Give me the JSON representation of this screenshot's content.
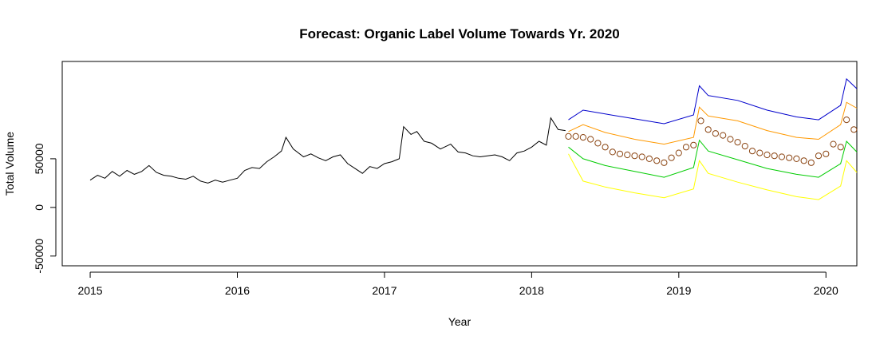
{
  "chart_data": {
    "type": "line",
    "title": "Forecast: Organic Label Volume Towards Yr. 2020",
    "xlabel": "Year",
    "ylabel": "Total Volume",
    "xlim": [
      2014.81,
      2020.21
    ],
    "ylim": [
      -60000,
      150000
    ],
    "x_ticks": [
      2015,
      2016,
      2017,
      2018,
      2019,
      2020
    ],
    "x_tick_labels": [
      "2015",
      "2016",
      "2017",
      "2018",
      "2019",
      "2020"
    ],
    "y_ticks": [
      -50000,
      0,
      50000
    ],
    "y_tick_labels": [
      "-50000",
      "0",
      "50000"
    ],
    "grid": false,
    "legend": "none",
    "series": [
      {
        "role": "observed",
        "style": "line",
        "color": "#000000",
        "points": [
          [
            2015.0,
            28000
          ],
          [
            2015.05,
            33000
          ],
          [
            2015.1,
            30000
          ],
          [
            2015.15,
            37000
          ],
          [
            2015.2,
            32000
          ],
          [
            2015.25,
            38000
          ],
          [
            2015.3,
            34000
          ],
          [
            2015.35,
            37000
          ],
          [
            2015.4,
            43000
          ],
          [
            2015.45,
            36000
          ],
          [
            2015.5,
            33000
          ],
          [
            2015.55,
            32000
          ],
          [
            2015.6,
            30000
          ],
          [
            2015.65,
            29000
          ],
          [
            2015.7,
            32000
          ],
          [
            2015.75,
            27000
          ],
          [
            2015.8,
            25000
          ],
          [
            2015.85,
            28000
          ],
          [
            2015.9,
            26000
          ],
          [
            2015.95,
            28000
          ],
          [
            2016.0,
            30000
          ],
          [
            2016.05,
            38000
          ],
          [
            2016.1,
            41000
          ],
          [
            2016.15,
            40000
          ],
          [
            2016.2,
            47000
          ],
          [
            2016.25,
            52000
          ],
          [
            2016.3,
            58000
          ],
          [
            2016.33,
            72000
          ],
          [
            2016.38,
            60000
          ],
          [
            2016.45,
            52000
          ],
          [
            2016.5,
            55000
          ],
          [
            2016.55,
            51000
          ],
          [
            2016.6,
            48000
          ],
          [
            2016.65,
            52000
          ],
          [
            2016.7,
            54000
          ],
          [
            2016.75,
            45000
          ],
          [
            2016.8,
            40000
          ],
          [
            2016.85,
            35000
          ],
          [
            2016.9,
            42000
          ],
          [
            2016.95,
            40000
          ],
          [
            2017.0,
            45000
          ],
          [
            2017.05,
            47000
          ],
          [
            2017.1,
            50000
          ],
          [
            2017.13,
            83000
          ],
          [
            2017.18,
            75000
          ],
          [
            2017.22,
            78000
          ],
          [
            2017.27,
            68000
          ],
          [
            2017.32,
            66000
          ],
          [
            2017.38,
            60000
          ],
          [
            2017.45,
            65000
          ],
          [
            2017.5,
            57000
          ],
          [
            2017.55,
            56000
          ],
          [
            2017.6,
            53000
          ],
          [
            2017.65,
            52000
          ],
          [
            2017.7,
            53000
          ],
          [
            2017.75,
            54000
          ],
          [
            2017.8,
            52000
          ],
          [
            2017.85,
            48000
          ],
          [
            2017.9,
            56000
          ],
          [
            2017.95,
            58000
          ],
          [
            2018.0,
            62000
          ],
          [
            2018.05,
            68000
          ],
          [
            2018.1,
            64000
          ],
          [
            2018.13,
            92000
          ],
          [
            2018.18,
            80000
          ],
          [
            2018.23,
            79000
          ]
        ]
      },
      {
        "role": "upper-95",
        "style": "line",
        "color": "#0000CC",
        "points": [
          [
            2018.25,
            90000
          ],
          [
            2018.35,
            100000
          ],
          [
            2018.5,
            96000
          ],
          [
            2018.7,
            91000
          ],
          [
            2018.9,
            86000
          ],
          [
            2019.1,
            95000
          ],
          [
            2019.14,
            125000
          ],
          [
            2019.2,
            115000
          ],
          [
            2019.4,
            110000
          ],
          [
            2019.6,
            100000
          ],
          [
            2019.8,
            93000
          ],
          [
            2019.95,
            90000
          ],
          [
            2020.1,
            105000
          ],
          [
            2020.14,
            132000
          ],
          [
            2020.21,
            122000
          ]
        ]
      },
      {
        "role": "upper-80",
        "style": "line",
        "color": "#FF9900",
        "points": [
          [
            2018.25,
            78000
          ],
          [
            2018.35,
            85000
          ],
          [
            2018.5,
            77000
          ],
          [
            2018.7,
            70000
          ],
          [
            2018.9,
            65000
          ],
          [
            2019.1,
            72000
          ],
          [
            2019.14,
            103000
          ],
          [
            2019.2,
            94000
          ],
          [
            2019.4,
            89000
          ],
          [
            2019.6,
            79000
          ],
          [
            2019.8,
            72000
          ],
          [
            2019.95,
            70000
          ],
          [
            2020.1,
            85000
          ],
          [
            2020.14,
            108000
          ],
          [
            2020.21,
            102000
          ]
        ]
      },
      {
        "role": "forecast",
        "style": "points",
        "color": "#8B4513",
        "points": [
          [
            2018.25,
            73000
          ],
          [
            2018.3,
            73000
          ],
          [
            2018.35,
            72000
          ],
          [
            2018.4,
            70000
          ],
          [
            2018.45,
            66000
          ],
          [
            2018.5,
            62000
          ],
          [
            2018.55,
            57000
          ],
          [
            2018.6,
            55000
          ],
          [
            2018.65,
            54000
          ],
          [
            2018.7,
            53000
          ],
          [
            2018.75,
            52000
          ],
          [
            2018.8,
            50000
          ],
          [
            2018.85,
            48000
          ],
          [
            2018.9,
            46000
          ],
          [
            2018.95,
            51000
          ],
          [
            2019.0,
            56000
          ],
          [
            2019.05,
            62000
          ],
          [
            2019.1,
            64000
          ],
          [
            2019.15,
            89000
          ],
          [
            2019.2,
            80000
          ],
          [
            2019.25,
            76000
          ],
          [
            2019.3,
            74000
          ],
          [
            2019.35,
            70000
          ],
          [
            2019.4,
            67000
          ],
          [
            2019.45,
            63000
          ],
          [
            2019.5,
            58000
          ],
          [
            2019.55,
            56000
          ],
          [
            2019.6,
            54000
          ],
          [
            2019.65,
            53000
          ],
          [
            2019.7,
            52000
          ],
          [
            2019.75,
            51000
          ],
          [
            2019.8,
            50000
          ],
          [
            2019.85,
            48000
          ],
          [
            2019.9,
            46000
          ],
          [
            2019.95,
            53000
          ],
          [
            2020.0,
            55000
          ],
          [
            2020.05,
            65000
          ],
          [
            2020.1,
            62000
          ],
          [
            2020.14,
            90000
          ],
          [
            2020.19,
            80000
          ]
        ]
      },
      {
        "role": "lower-80",
        "style": "line",
        "color": "#00CC00",
        "points": [
          [
            2018.25,
            62000
          ],
          [
            2018.35,
            50000
          ],
          [
            2018.5,
            43000
          ],
          [
            2018.7,
            37000
          ],
          [
            2018.9,
            31000
          ],
          [
            2019.1,
            41000
          ],
          [
            2019.14,
            69000
          ],
          [
            2019.2,
            58000
          ],
          [
            2019.4,
            49000
          ],
          [
            2019.6,
            40000
          ],
          [
            2019.8,
            34000
          ],
          [
            2019.95,
            31000
          ],
          [
            2020.1,
            45000
          ],
          [
            2020.14,
            68000
          ],
          [
            2020.21,
            57000
          ]
        ]
      },
      {
        "role": "lower-95",
        "style": "line",
        "color": "#FFFF00",
        "points": [
          [
            2018.25,
            55000
          ],
          [
            2018.35,
            27000
          ],
          [
            2018.5,
            21000
          ],
          [
            2018.7,
            15000
          ],
          [
            2018.9,
            10000
          ],
          [
            2019.1,
            19000
          ],
          [
            2019.14,
            48000
          ],
          [
            2019.2,
            35000
          ],
          [
            2019.4,
            26000
          ],
          [
            2019.6,
            18000
          ],
          [
            2019.8,
            11000
          ],
          [
            2019.95,
            8000
          ],
          [
            2020.1,
            22000
          ],
          [
            2020.14,
            48000
          ],
          [
            2020.21,
            36000
          ]
        ]
      }
    ]
  }
}
